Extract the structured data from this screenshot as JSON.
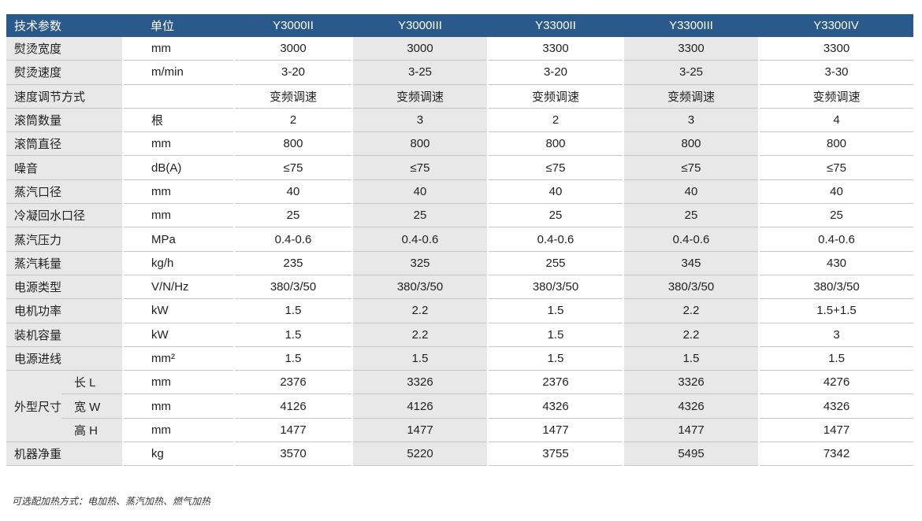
{
  "header": {
    "param": "技术参数",
    "unit": "单位",
    "models": [
      "Y3000II",
      "Y3000III",
      "Y3300II",
      "Y3300III",
      "Y3300IV"
    ]
  },
  "rows": [
    {
      "label": "熨烫宽度",
      "unit": "mm",
      "values": [
        "3000",
        "3000",
        "3300",
        "3300",
        "3300"
      ]
    },
    {
      "label": "熨烫速度",
      "unit": "m/min",
      "values": [
        "3-20",
        "3-25",
        "3-20",
        "3-25",
        "3-30"
      ]
    },
    {
      "label": "速度调节方式",
      "unit": "",
      "values": [
        "变频调速",
        "变频调速",
        "变频调速",
        "变频调速",
        "变频调速"
      ]
    },
    {
      "label": "滚筒数量",
      "unit": "根",
      "values": [
        "2",
        "3",
        "2",
        "3",
        "4"
      ]
    },
    {
      "label": "滚筒直径",
      "unit": "mm",
      "values": [
        "800",
        "800",
        "800",
        "800",
        "800"
      ]
    },
    {
      "label": "噪音",
      "unit": "dB(A)",
      "values": [
        "≤75",
        "≤75",
        "≤75",
        "≤75",
        "≤75"
      ]
    },
    {
      "label": "蒸汽口径",
      "unit": "mm",
      "values": [
        "40",
        "40",
        "40",
        "40",
        "40"
      ]
    },
    {
      "label": "冷凝回水口径",
      "unit": "mm",
      "values": [
        "25",
        "25",
        "25",
        "25",
        "25"
      ]
    },
    {
      "label": "蒸汽压力",
      "unit": "MPa",
      "values": [
        "0.4-0.6",
        "0.4-0.6",
        "0.4-0.6",
        "0.4-0.6",
        "0.4-0.6"
      ]
    },
    {
      "label": "蒸汽耗量",
      "unit": "kg/h",
      "values": [
        "235",
        "325",
        "255",
        "345",
        "430"
      ]
    },
    {
      "label": "电源类型",
      "unit": "V/N/Hz",
      "values": [
        "380/3/50",
        "380/3/50",
        "380/3/50",
        "380/3/50",
        "380/3/50"
      ]
    },
    {
      "label": "电机功率",
      "unit": "kW",
      "values": [
        "1.5",
        "2.2",
        "1.5",
        "2.2",
        "1.5+1.5"
      ]
    },
    {
      "label": "装机容量",
      "unit": "kW",
      "values": [
        "1.5",
        "2.2",
        "1.5",
        "2.2",
        "3"
      ]
    },
    {
      "label": "电源进线",
      "unit": "mm²",
      "values": [
        "1.5",
        "1.5",
        "1.5",
        "1.5",
        "1.5"
      ]
    }
  ],
  "dimensions": {
    "group_label": "外型尺寸",
    "rows": [
      {
        "label": "长 L",
        "unit": "mm",
        "values": [
          "2376",
          "3326",
          "2376",
          "3326",
          "4276"
        ]
      },
      {
        "label": "宽 W",
        "unit": "mm",
        "values": [
          "4126",
          "4126",
          "4326",
          "4326",
          "4326"
        ]
      },
      {
        "label": "高 H",
        "unit": "mm",
        "values": [
          "1477",
          "1477",
          "1477",
          "1477",
          "1477"
        ]
      }
    ]
  },
  "weight": {
    "label": "机器净重",
    "unit": "kg",
    "values": [
      "3570",
      "5220",
      "3755",
      "5495",
      "7342"
    ]
  },
  "footnote": "可选配加热方式：电加热、蒸汽加热、燃气加热"
}
